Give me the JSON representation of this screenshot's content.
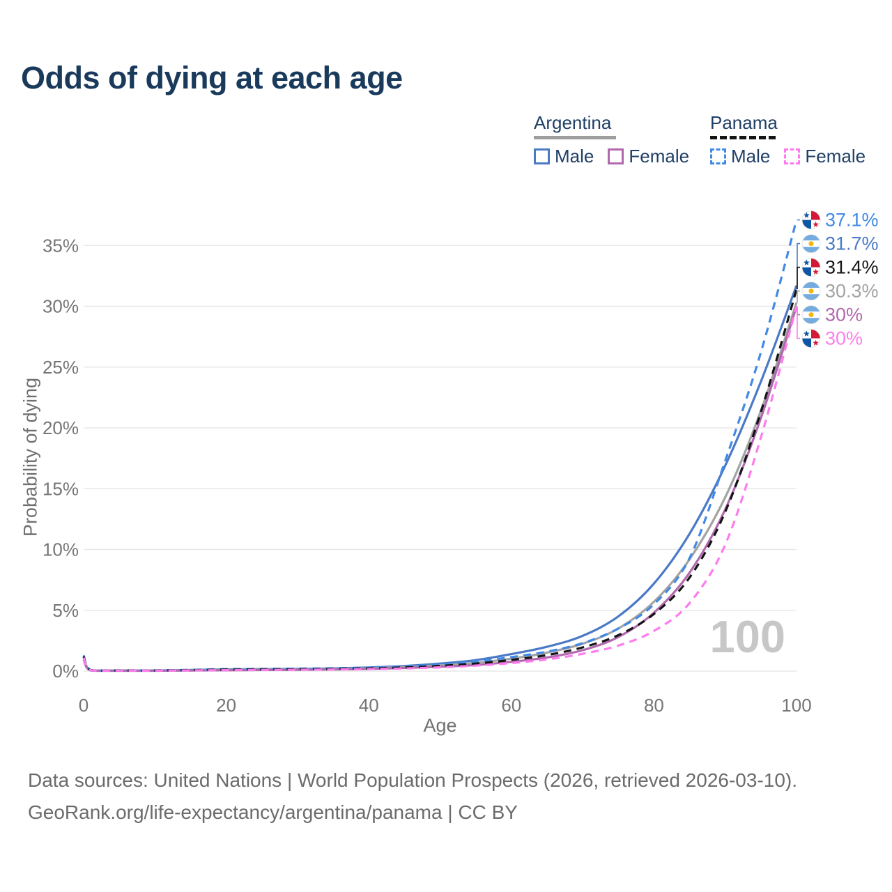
{
  "title": "Odds of dying at each age",
  "legend": {
    "groups": [
      {
        "label": "Argentina",
        "line_style": "solid",
        "underline_color": "#9e9e9e",
        "items": [
          {
            "label": "Male",
            "color": "#4a79c5"
          },
          {
            "label": "Female",
            "color": "#b168ae"
          }
        ]
      },
      {
        "label": "Panama",
        "line_style": "dashed",
        "underline_color": "#141414",
        "items": [
          {
            "label": "Male",
            "color": "#4289e5"
          },
          {
            "label": "Female",
            "color": "#fd7ced"
          }
        ]
      }
    ]
  },
  "axes": {
    "x_label": "Age",
    "y_label": "Probability of dying",
    "x_ticks": [
      {
        "value": 0,
        "label": "0"
      },
      {
        "value": 20,
        "label": "20"
      },
      {
        "value": 40,
        "label": "40"
      },
      {
        "value": 60,
        "label": "60"
      },
      {
        "value": 80,
        "label": "80"
      },
      {
        "value": 100,
        "label": "100"
      }
    ],
    "y_ticks": [
      {
        "value": 0,
        "label": "0%"
      },
      {
        "value": 5,
        "label": "5%"
      },
      {
        "value": 10,
        "label": "10%"
      },
      {
        "value": 15,
        "label": "15%"
      },
      {
        "value": 20,
        "label": "20%"
      },
      {
        "value": 25,
        "label": "25%"
      },
      {
        "value": 30,
        "label": "30%"
      },
      {
        "value": 35,
        "label": "35%"
      }
    ]
  },
  "watermark": "100",
  "chart_data": {
    "type": "line",
    "title": "Odds of dying at each age",
    "xlabel": "Age",
    "ylabel": "Probability of dying",
    "xlim": [
      0,
      100
    ],
    "ylim": [
      0,
      37.5
    ],
    "grid": "horizontal",
    "legend_position": "top-right",
    "x_ages": [
      0,
      1,
      5,
      10,
      15,
      20,
      25,
      30,
      35,
      40,
      45,
      50,
      55,
      60,
      65,
      70,
      75,
      80,
      85,
      90,
      95,
      100
    ],
    "series": [
      {
        "name": "Panama Male",
        "color": "#4289e5",
        "dash": true,
        "flag": "panama",
        "end_label": "37.1%",
        "values": [
          1.3,
          0.09,
          0.06,
          0.06,
          0.1,
          0.16,
          0.18,
          0.2,
          0.23,
          0.28,
          0.38,
          0.55,
          0.8,
          1.15,
          1.6,
          2.3,
          3.5,
          5.5,
          9.3,
          17.3,
          26.2,
          37.1
        ]
      },
      {
        "name": "Argentina Male",
        "color": "#4a79c5",
        "dash": false,
        "flag": "argentina",
        "end_label": "31.7%",
        "values": [
          1.15,
          0.07,
          0.05,
          0.05,
          0.09,
          0.14,
          0.16,
          0.18,
          0.22,
          0.3,
          0.42,
          0.62,
          0.9,
          1.4,
          2.0,
          2.9,
          4.5,
          7.2,
          11.3,
          16.9,
          23.8,
          31.7
        ]
      },
      {
        "name": "Panama",
        "color": "#141414",
        "dash": true,
        "flag": "panama",
        "end_label": "31.4%",
        "values": [
          1.2,
          0.08,
          0.05,
          0.05,
          0.08,
          0.12,
          0.14,
          0.15,
          0.17,
          0.22,
          0.3,
          0.43,
          0.62,
          0.92,
          1.32,
          1.95,
          2.95,
          4.7,
          7.7,
          13.1,
          21.3,
          31.4
        ]
      },
      {
        "name": "Argentina",
        "color": "#a3a3a3",
        "dash": false,
        "flag": "argentina",
        "end_label": "30.3%",
        "values": [
          1.05,
          0.06,
          0.04,
          0.04,
          0.07,
          0.11,
          0.12,
          0.14,
          0.17,
          0.24,
          0.33,
          0.48,
          0.68,
          1.02,
          1.52,
          2.25,
          3.5,
          5.7,
          9.2,
          14.3,
          21.4,
          30.3
        ]
      },
      {
        "name": "Argentina Female",
        "color": "#b168ae",
        "dash": false,
        "flag": "argentina",
        "end_label": "30%",
        "values": [
          0.95,
          0.05,
          0.03,
          0.03,
          0.05,
          0.07,
          0.09,
          0.11,
          0.13,
          0.18,
          0.26,
          0.36,
          0.5,
          0.76,
          1.12,
          1.72,
          2.8,
          4.8,
          8.1,
          13.3,
          20.8,
          30.0
        ]
      },
      {
        "name": "Panama Female",
        "color": "#fd7ced",
        "dash": true,
        "flag": "panama",
        "end_label": "30%",
        "values": [
          1.1,
          0.07,
          0.04,
          0.04,
          0.06,
          0.08,
          0.1,
          0.11,
          0.13,
          0.16,
          0.22,
          0.31,
          0.45,
          0.66,
          0.96,
          1.42,
          2.1,
          3.3,
          5.6,
          10.4,
          19.2,
          30.0
        ]
      }
    ]
  },
  "footer": {
    "line1": "Data sources: United Nations | World Population Prospects (2026, retrieved 2026-03-10).",
    "line2": "GeoRank.org/life-expectancy/argentina/panama | CC BY"
  }
}
